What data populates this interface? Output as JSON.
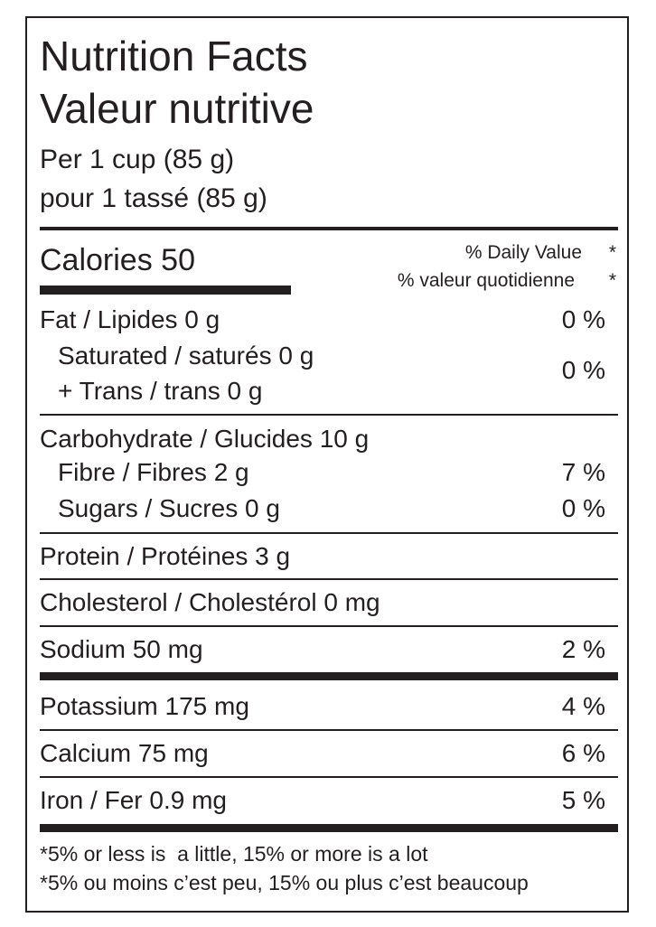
{
  "header": {
    "title_en": "Nutrition Facts",
    "title_fr": "Valeur nutritive",
    "serving_en": "Per 1 cup (85 g)",
    "serving_fr": "pour 1 tassé (85 g)"
  },
  "calories": {
    "label": "Calories 50",
    "dv_en": "% Daily Value",
    "dv_fr": "% valeur quotidienne",
    "asterisk": "*"
  },
  "rows": [
    {
      "label": "Fat / Lipides 0 g",
      "dv": "0 %"
    },
    {
      "label": "Saturated / saturés 0 g",
      "label2": "+ Trans / trans 0 g",
      "dv": "0 %"
    },
    {
      "label": "Carbohydrate / Glucides 10 g"
    },
    {
      "label": "Fibre / Fibres 2 g",
      "dv": "7 %"
    },
    {
      "label": "Sugars / Sucres 0 g",
      "dv": "0 %"
    },
    {
      "label": "Protein / Protéines 3 g"
    },
    {
      "label": "Cholesterol / Cholestérol 0 mg"
    },
    {
      "label": "Sodium 50 mg",
      "dv": "2 %"
    },
    {
      "label": "Potassium 175 mg",
      "dv": "4 %"
    },
    {
      "label": "Calcium 75 mg",
      "dv": "6 %"
    },
    {
      "label": "Iron / Fer 0.9 mg",
      "dv": "5 %"
    }
  ],
  "footnotes": [
    "*5% or less is  a little, 15% or more is a lot",
    "*5% ou moins c’est peu, 15% ou plus c’est beaucoup"
  ]
}
